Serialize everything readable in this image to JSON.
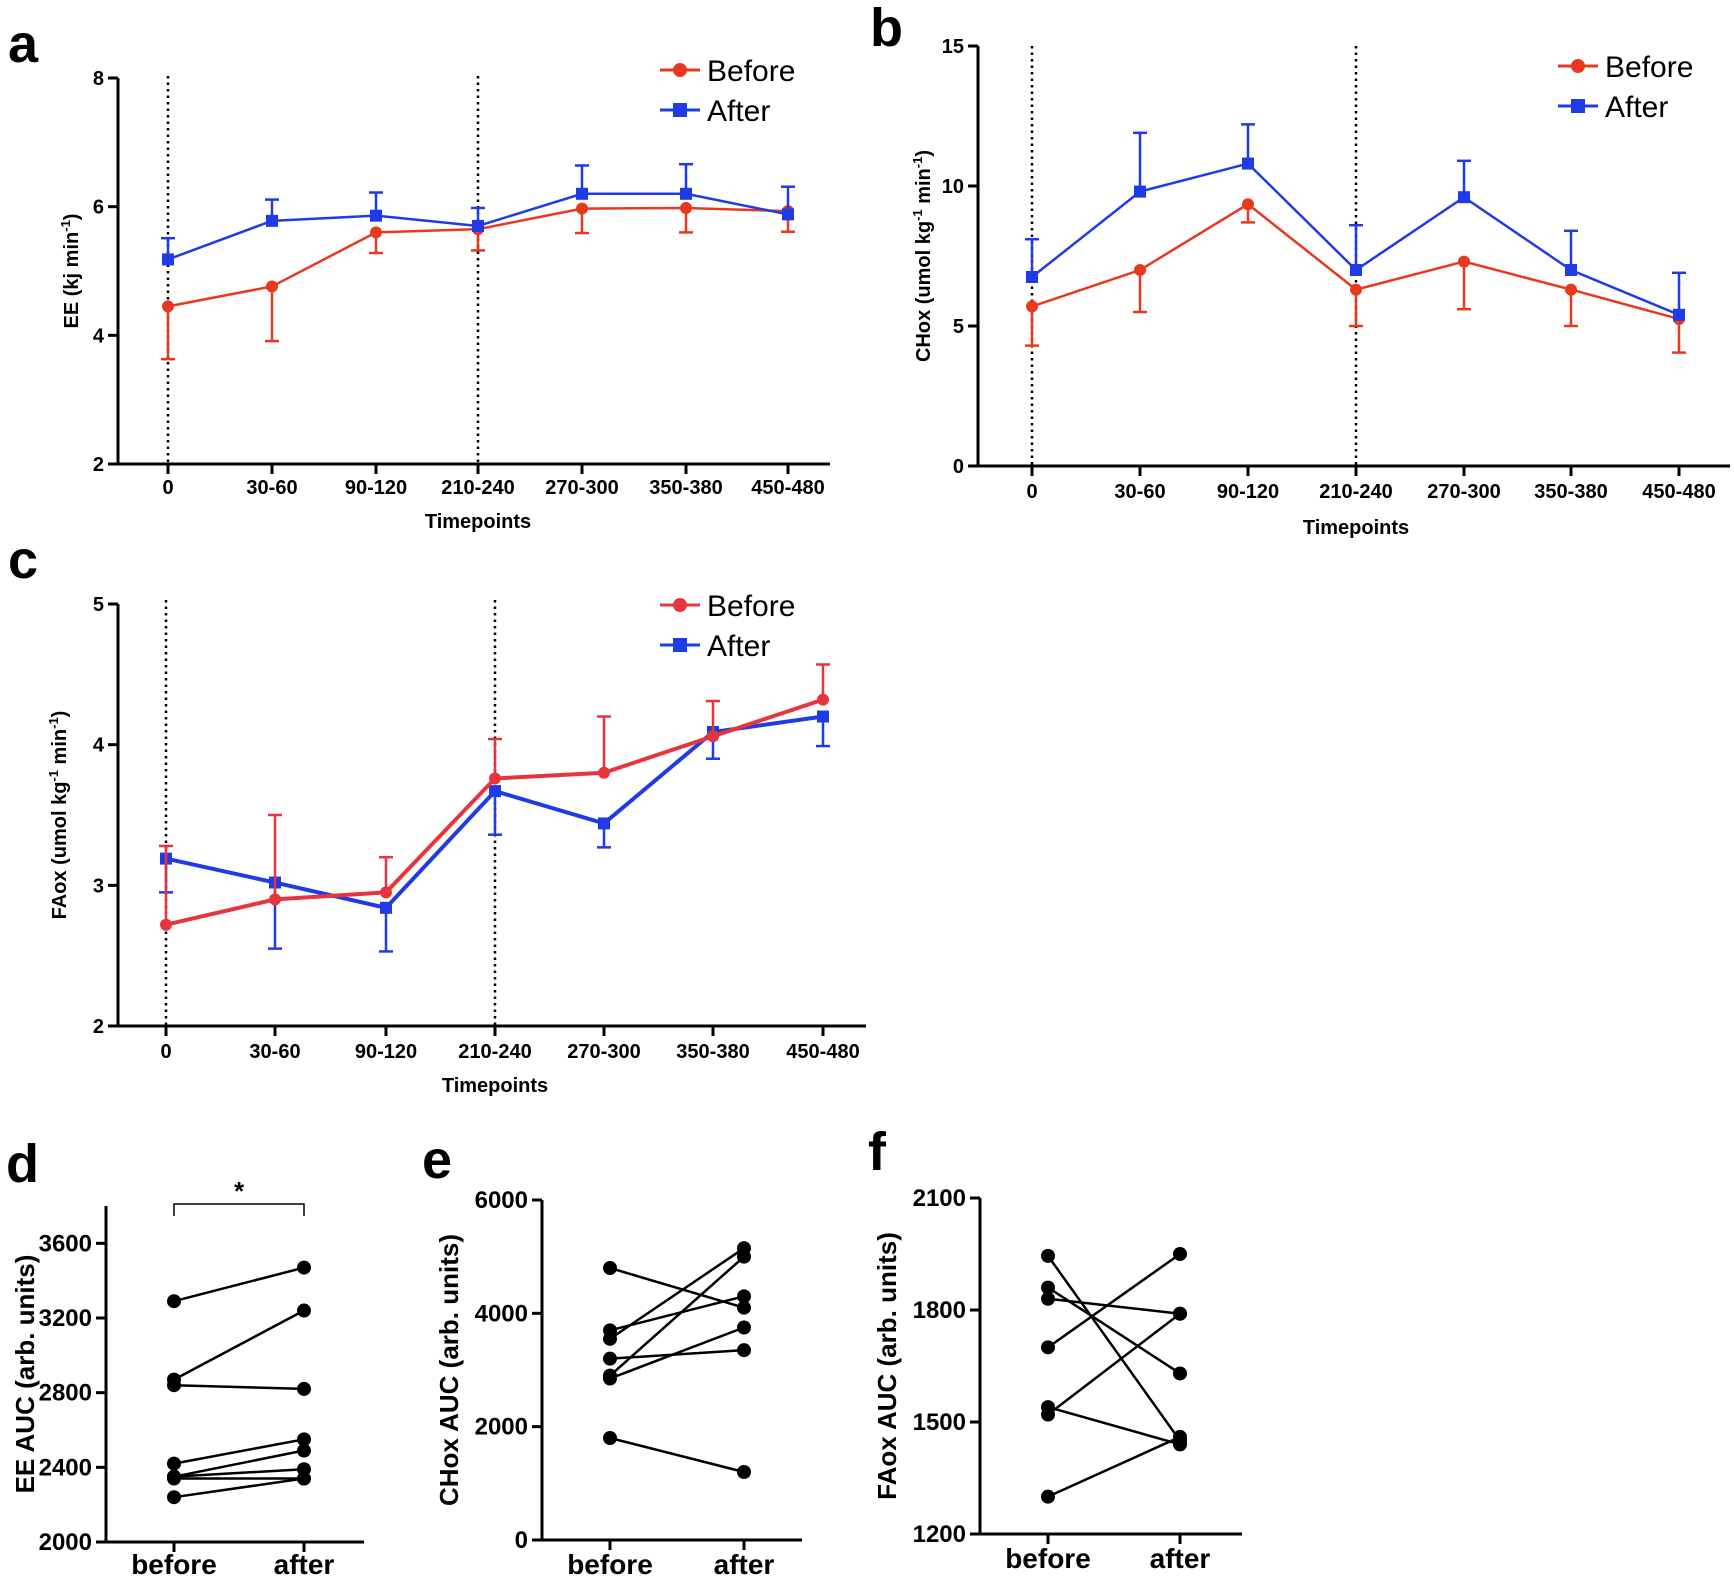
{
  "colors": {
    "before": "#e8391f",
    "after": "#1f3be8",
    "before_c": "#e8343f",
    "axis": "#000000"
  },
  "chart_data": [
    {
      "panel": "a",
      "type": "line",
      "xlabel": "Timepoints",
      "ylabel": "EE (kj min",
      "ylabel_sup": "-1",
      "ylabel_end": ")",
      "categories": [
        "0",
        "30-60",
        "90-120",
        "210-240",
        "270-300",
        "350-380",
        "450-480"
      ],
      "ylim": [
        2,
        8
      ],
      "yticks": [
        "2",
        "4",
        "6",
        "8"
      ],
      "vlines_at": [
        "0",
        "210-240"
      ],
      "series": [
        {
          "name": "Before",
          "marker": "circle",
          "values": [
            4.45,
            4.76,
            5.6,
            5.65,
            5.97,
            5.98,
            5.93
          ],
          "err": [
            0.82,
            0.85,
            0.32,
            0.33,
            0.38,
            0.38,
            0.32
          ],
          "err_dir": [
            "down",
            "down",
            "down",
            "down",
            "down",
            "down",
            "down"
          ]
        },
        {
          "name": "After",
          "marker": "square",
          "values": [
            5.18,
            5.78,
            5.86,
            5.7,
            6.2,
            6.2,
            5.88
          ],
          "err": [
            0.33,
            0.33,
            0.36,
            0.28,
            0.44,
            0.46,
            0.43
          ],
          "err_dir": [
            "up",
            "up",
            "up",
            "up",
            "up",
            "up",
            "up"
          ]
        }
      ]
    },
    {
      "panel": "b",
      "type": "line",
      "xlabel": "Timepoints",
      "ylabel": "CHox (umol kg",
      "ylabel_sup": "-1",
      "ylabel_mid": " min",
      "ylabel_sup2": "-1",
      "ylabel_end": ")",
      "categories": [
        "0",
        "30-60",
        "90-120",
        "210-240",
        "270-300",
        "350-380",
        "450-480"
      ],
      "ylim": [
        0,
        15
      ],
      "yticks": [
        "0",
        "5",
        "10",
        "15"
      ],
      "vlines_at": [
        "0",
        "210-240"
      ],
      "series": [
        {
          "name": "Before",
          "marker": "circle",
          "values": [
            5.7,
            7.0,
            9.35,
            6.3,
            7.3,
            6.3,
            5.25
          ],
          "err": [
            1.4,
            1.5,
            0.65,
            1.3,
            1.7,
            1.3,
            1.2
          ],
          "err_dir": [
            "down",
            "down",
            "down",
            "down",
            "down",
            "down",
            "down"
          ]
        },
        {
          "name": "After",
          "marker": "square",
          "values": [
            6.75,
            9.8,
            10.8,
            7.0,
            9.6,
            7.0,
            5.4
          ],
          "err": [
            1.35,
            2.1,
            1.4,
            1.6,
            1.3,
            1.4,
            1.5
          ],
          "err_dir": [
            "up",
            "up",
            "up",
            "up",
            "up",
            "up",
            "up"
          ]
        }
      ]
    },
    {
      "panel": "c",
      "type": "line",
      "xlabel": "Timepoints",
      "ylabel": "FAox (umol kg",
      "ylabel_sup": "-1",
      "ylabel_mid": " min",
      "ylabel_sup2": "-1",
      "ylabel_end": ")",
      "categories": [
        "0",
        "30-60",
        "90-120",
        "210-240",
        "270-300",
        "350-380",
        "450-480"
      ],
      "ylim": [
        2,
        5
      ],
      "yticks": [
        "2",
        "3",
        "4",
        "5"
      ],
      "vlines_at": [
        "0",
        "210-240"
      ],
      "series": [
        {
          "name": "Before",
          "marker": "circle",
          "values": [
            2.72,
            2.9,
            2.95,
            3.76,
            3.8,
            4.06,
            4.32
          ],
          "err": [
            0.56,
            0.6,
            0.25,
            0.28,
            0.4,
            0.25,
            0.25
          ],
          "err_dir": [
            "up",
            "up",
            "up",
            "up",
            "up",
            "up",
            "up"
          ]
        },
        {
          "name": "After",
          "marker": "square",
          "values": [
            3.19,
            3.02,
            2.84,
            3.67,
            3.44,
            4.09,
            4.2
          ],
          "err": [
            0.24,
            0.47,
            0.31,
            0.31,
            0.17,
            0.19,
            0.21
          ],
          "err_dir": [
            "down",
            "down",
            "down",
            "down",
            "down",
            "down",
            "down"
          ]
        }
      ]
    },
    {
      "panel": "d",
      "type": "scatter",
      "ylabel": "EE AUC (arb. units)",
      "categories": [
        "before",
        "after"
      ],
      "ylim": [
        2000,
        3800
      ],
      "yticks": [
        "2000",
        "2400",
        "2800",
        "3200",
        "3600"
      ],
      "significance": "*",
      "pairs": [
        [
          3290,
          3470
        ],
        [
          2870,
          3240
        ],
        [
          2840,
          2820
        ],
        [
          2420,
          2550
        ],
        [
          2350,
          2490
        ],
        [
          2350,
          2390
        ],
        [
          2340,
          2340
        ],
        [
          2240,
          2340
        ]
      ]
    },
    {
      "panel": "e",
      "type": "scatter",
      "ylabel": "CHox AUC (arb. units)",
      "categories": [
        "before",
        "after"
      ],
      "ylim": [
        0,
        6000
      ],
      "yticks": [
        "0",
        "2000",
        "4000",
        "6000"
      ],
      "pairs": [
        [
          4800,
          4100
        ],
        [
          3700,
          4300
        ],
        [
          3550,
          5150
        ],
        [
          3200,
          3350
        ],
        [
          2900,
          5000
        ],
        [
          2850,
          3750
        ],
        [
          1800,
          1200
        ]
      ]
    },
    {
      "panel": "f",
      "type": "scatter",
      "ylabel": "FAox AUC (arb. units)",
      "categories": [
        "before",
        "after"
      ],
      "ylim": [
        1200,
        2100
      ],
      "yticks": [
        "1200",
        "1500",
        "1800",
        "2100"
      ],
      "pairs": [
        [
          1945,
          1450
        ],
        [
          1860,
          1630
        ],
        [
          1830,
          1790
        ],
        [
          1700,
          1950
        ],
        [
          1540,
          1440
        ],
        [
          1520,
          1790
        ],
        [
          1300,
          1460
        ]
      ]
    }
  ]
}
